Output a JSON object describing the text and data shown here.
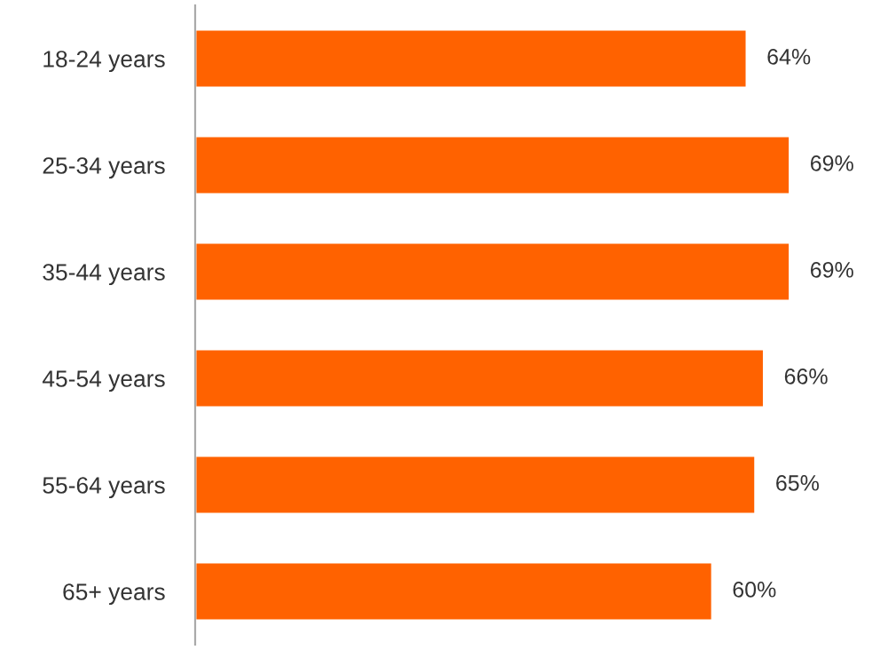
{
  "chart_data": {
    "type": "bar",
    "orientation": "horizontal",
    "categories": [
      "18-24 years",
      "25-34 years",
      "35-44 years",
      "45-54 years",
      "55-64 years",
      "65+ years"
    ],
    "values": [
      64,
      69,
      69,
      66,
      65,
      60
    ],
    "color": "#ff6200",
    "value_labels": [
      "64%",
      "69%",
      "69%",
      "66%",
      "65%",
      "60%"
    ],
    "grid": false,
    "legend": false
  }
}
